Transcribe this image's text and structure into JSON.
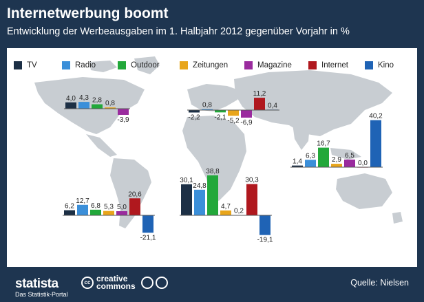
{
  "header": {
    "title": "Internetwerbung boomt",
    "subtitle": "Entwicklung der Werbeausgaben im 1. Halbjahr 2012 gegenüber Vorjahr in %"
  },
  "footer": {
    "brand": "statista",
    "brand_sub": "Das Statistik-Portal",
    "license_line1": "creative",
    "license_line2": "commons",
    "source": "Quelle: Nielsen"
  },
  "icons": {
    "world_map": "world-map-icon",
    "statista_logo": "statista-logo-icon",
    "cc_logo": "cc-icon",
    "by_icon": "attribution-icon",
    "nd_icon": "no-derivatives-icon"
  },
  "colors": {
    "TV": "#1c2f45",
    "Radio": "#3b8fd9",
    "Outdoor": "#22a83a",
    "Zeitungen": "#e8a51b",
    "Magazine": "#9a2b9e",
    "Internet": "#b0181e",
    "Kino": "#1f63b5"
  },
  "chart_data": [
    {
      "type": "bar",
      "categories": [
        "TV",
        "Radio",
        "Outdoor",
        "Zeitungen",
        "Magazine",
        "Internet",
        "Kino"
      ],
      "values": [
        4.0,
        4.3,
        2.8,
        0.8,
        -3.9,
        null,
        null
      ],
      "labels": [
        "4,0",
        "4,3",
        "2,8",
        "0,8",
        "-3,9",
        "",
        ""
      ]
    },
    {
      "type": "bar",
      "categories": [
        "TV",
        "Radio",
        "Outdoor",
        "Zeitungen",
        "Magazine",
        "Internet",
        "Kino"
      ],
      "values": [
        -2.2,
        0.8,
        -2.1,
        -5.2,
        -6.9,
        11.2,
        0.4
      ],
      "labels": [
        "-2,2",
        "0,8",
        "-2,1",
        "-5,2",
        "-6,9",
        "11,2",
        "0,4"
      ]
    },
    {
      "type": "bar",
      "categories": [
        "TV",
        "Radio",
        "Outdoor",
        "Zeitungen",
        "Magazine",
        "Internet",
        "Kino"
      ],
      "values": [
        1.4,
        6.3,
        16.7,
        2.9,
        6.5,
        0.0,
        40.2
      ],
      "labels": [
        "1,4",
        "6,3",
        "16,7",
        "2,9",
        "6,5",
        "0,0",
        "40,2"
      ]
    },
    {
      "type": "bar",
      "categories": [
        "TV",
        "Radio",
        "Outdoor",
        "Zeitungen",
        "Magazine",
        "Internet",
        "Kino"
      ],
      "values": [
        6.2,
        12.7,
        6.8,
        5.3,
        5.0,
        20.6,
        -21.1
      ],
      "labels": [
        "6,2",
        "12,7",
        "6,8",
        "5,3",
        "5,0",
        "20,6",
        "-21,1"
      ]
    },
    {
      "type": "bar",
      "categories": [
        "TV",
        "Radio",
        "Outdoor",
        "Zeitungen",
        "Magazine",
        "Internet",
        "Kino"
      ],
      "values": [
        30.1,
        24.8,
        38.8,
        4.7,
        0.2,
        30.3,
        -19.1
      ],
      "labels": [
        "30,1",
        "24,8",
        "38,8",
        "4,7",
        "0,2",
        "30,3",
        "-19,1"
      ]
    }
  ]
}
